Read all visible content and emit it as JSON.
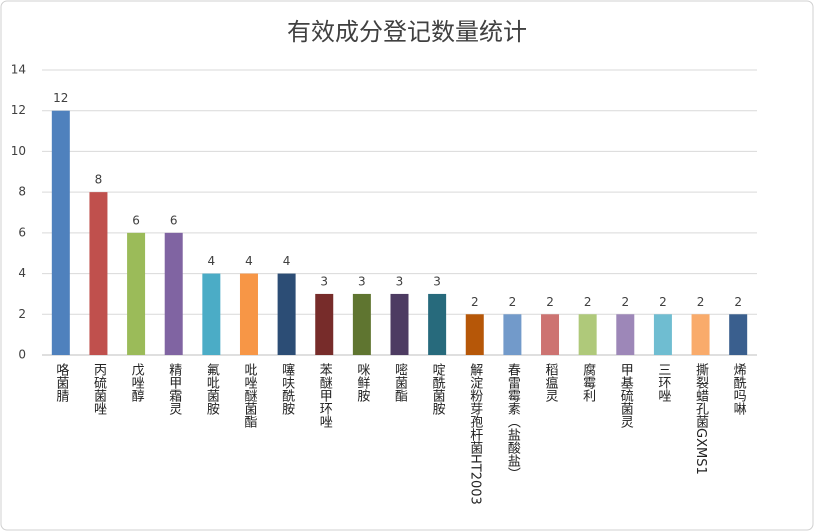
{
  "chart_data": {
    "type": "bar",
    "title": "有效成分登记数量统计",
    "categories": [
      "咯菌腈",
      "丙硫菌唑",
      "戊唑醇",
      "精甲霜灵",
      "氟吡菌胺",
      "吡唑醚菌酯",
      "噻呋酰胺",
      "苯醚甲环唑",
      "咪鲜胺",
      "嘧菌酯",
      "啶酰菌胺",
      "解淀粉芽孢杆菌HT2003",
      "春雷霉素（盐酸盐）",
      "稻瘟灵",
      "腐霉利",
      "甲基硫菌灵",
      "三环唑",
      "撕裂蜡孔菌GXMS1",
      "烯酰吗啉"
    ],
    "values": [
      12,
      8,
      6,
      6,
      4,
      4,
      4,
      3,
      3,
      3,
      3,
      2,
      2,
      2,
      2,
      2,
      2,
      2,
      2
    ],
    "colors": [
      "#4f81bd",
      "#c0504d",
      "#9bbb59",
      "#8064a2",
      "#4bacc6",
      "#f79646",
      "#2c4d75",
      "#772c2a",
      "#5f7530",
      "#4d3b62",
      "#276a7c",
      "#b65708",
      "#729aca",
      "#cd7371",
      "#afc97a",
      "#9d87b8",
      "#6fbdd1",
      "#f9ab6b",
      "#3a5f8e"
    ],
    "ylim": [
      0,
      14
    ],
    "yticks": [
      0,
      2,
      4,
      6,
      8,
      10,
      12,
      14
    ],
    "grid": true
  }
}
